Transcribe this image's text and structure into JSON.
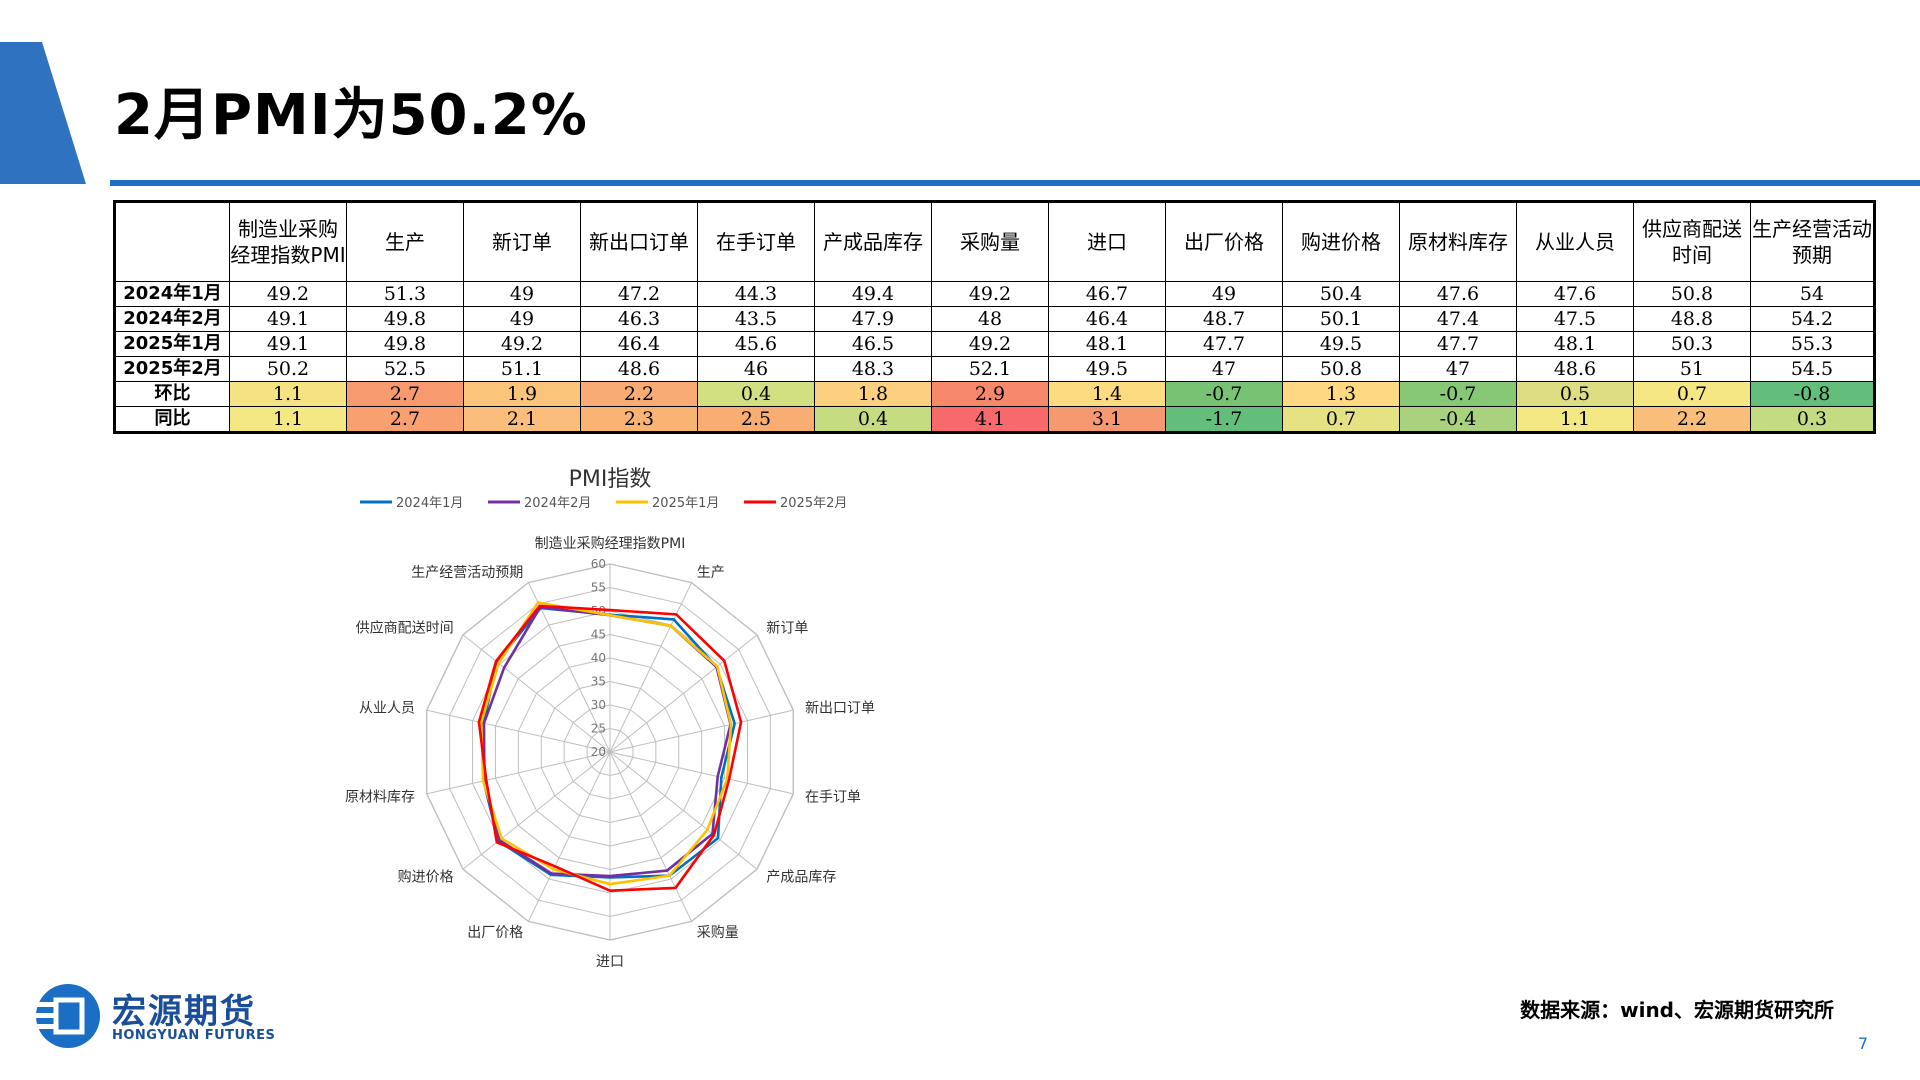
{
  "slide": {
    "title": "2月PMI为50.2%",
    "source": "数据来源：wind、宏源期货研究所",
    "page_number": "7",
    "accent_color": "#2f72c0"
  },
  "logo": {
    "name": "宏源期货",
    "english": "HONGYUAN FUTURES",
    "color": "#1a4e9a"
  },
  "table": {
    "columns": [
      "",
      "制造业采购经理指数PMI",
      "生产",
      "新订单",
      "新出口订单",
      "在手订单",
      "产成品库存",
      "采购量",
      "进口",
      "出厂价格",
      "购进价格",
      "原材料库存",
      "从业人员",
      "供应商配送时间",
      "生产经营活动预期"
    ],
    "rows": [
      {
        "label": "2024年1月",
        "values": [
          "49.2",
          "51.3",
          "49",
          "47.2",
          "44.3",
          "49.4",
          "49.2",
          "46.7",
          "49",
          "50.4",
          "47.6",
          "47.6",
          "50.8",
          "54"
        ]
      },
      {
        "label": "2024年2月",
        "values": [
          "49.1",
          "49.8",
          "49",
          "46.3",
          "43.5",
          "47.9",
          "48",
          "46.4",
          "48.7",
          "50.1",
          "47.4",
          "47.5",
          "48.8",
          "54.2"
        ]
      },
      {
        "label": "2025年1月",
        "values": [
          "49.1",
          "49.8",
          "49.2",
          "46.4",
          "45.6",
          "46.5",
          "49.2",
          "48.1",
          "47.7",
          "49.5",
          "47.7",
          "48.1",
          "50.3",
          "55.3"
        ]
      },
      {
        "label": "2025年2月",
        "values": [
          "50.2",
          "52.5",
          "51.1",
          "48.6",
          "46",
          "48.3",
          "52.1",
          "49.5",
          "47",
          "50.8",
          "47",
          "48.6",
          "51",
          "54.5"
        ]
      },
      {
        "label": "环比",
        "values": [
          "1.1",
          "2.7",
          "1.9",
          "2.2",
          "0.4",
          "1.8",
          "2.9",
          "1.4",
          "-0.7",
          "1.3",
          "-0.7",
          "0.5",
          "0.7",
          "-0.8"
        ],
        "colors": [
          "#f4e283",
          "#f79b6e",
          "#fbc47b",
          "#f8ab72",
          "#d2e082",
          "#fcd07e",
          "#f6886b",
          "#fddc81",
          "#77c373",
          "#fed981",
          "#86c875",
          "#ddde83",
          "#f5e884",
          "#63be7b"
        ]
      },
      {
        "label": "同比",
        "values": [
          "1.1",
          "2.7",
          "2.1",
          "2.3",
          "2.5",
          "0.4",
          "4.1",
          "3.1",
          "-1.7",
          "0.7",
          "-0.4",
          "1.1",
          "2.2",
          "0.3"
        ],
        "colors": [
          "#f3e884",
          "#f9a070",
          "#fbbd7b",
          "#f9b474",
          "#f8ad73",
          "#c6dc81",
          "#f8696b",
          "#f69870",
          "#63be7b",
          "#e4e283",
          "#a9d27f",
          "#f3e884",
          "#fabe7b",
          "#c4dc81"
        ]
      }
    ]
  },
  "chart_data": {
    "type": "radar",
    "title": "PMI指数",
    "categories": [
      "制造业采购经理指数PMI",
      "生产",
      "新订单",
      "新出口订单",
      "在手订单",
      "产成品库存",
      "采购量",
      "进口",
      "出厂价格",
      "购进价格",
      "原材料库存",
      "从业人员",
      "供应商配送时间",
      "生产经营活动预期"
    ],
    "rlim": [
      20,
      60
    ],
    "ticks": [
      20,
      25,
      30,
      35,
      40,
      45,
      50,
      55,
      60
    ],
    "series": [
      {
        "name": "2024年1月",
        "color": "#0070c0",
        "values": [
          49.2,
          51.3,
          49,
          47.2,
          44.3,
          49.4,
          49.2,
          46.7,
          49,
          50.4,
          47.6,
          47.6,
          50.8,
          54
        ]
      },
      {
        "name": "2024年2月",
        "color": "#7030a0",
        "values": [
          49.1,
          49.8,
          49,
          46.3,
          43.5,
          47.9,
          48,
          46.4,
          48.7,
          50.1,
          47.4,
          47.5,
          48.8,
          54.2
        ]
      },
      {
        "name": "2025年1月",
        "color": "#ffc000",
        "values": [
          49.1,
          49.8,
          49.2,
          46.4,
          45.6,
          46.5,
          49.2,
          48.1,
          47.7,
          49.5,
          47.7,
          48.1,
          50.3,
          55.3
        ]
      },
      {
        "name": "2025年2月",
        "color": "#ff0000",
        "values": [
          50.2,
          52.5,
          51.1,
          48.6,
          46,
          48.3,
          52.1,
          49.5,
          47,
          50.8,
          47,
          48.6,
          51,
          54.5
        ]
      }
    ],
    "legend_position": "top",
    "grid": true
  }
}
